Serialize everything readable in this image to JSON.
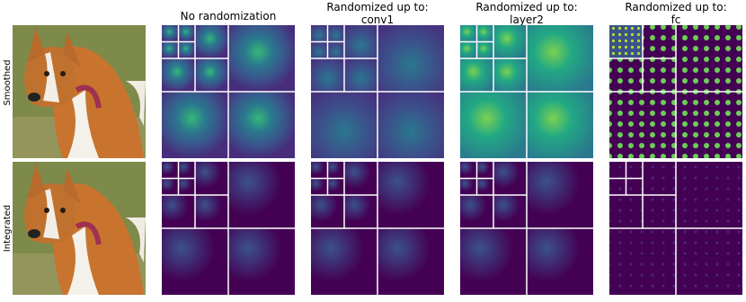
{
  "columns": [
    {
      "lines": [
        "No randomization"
      ]
    },
    {
      "lines": [
        "Randomized up to:",
        "conv1"
      ]
    },
    {
      "lines": [
        "Randomized up to:",
        "layer2"
      ]
    },
    {
      "lines": [
        "Randomized up to:",
        "fc"
      ]
    }
  ],
  "rows": [
    "Smoothed",
    "Integrated"
  ]
}
